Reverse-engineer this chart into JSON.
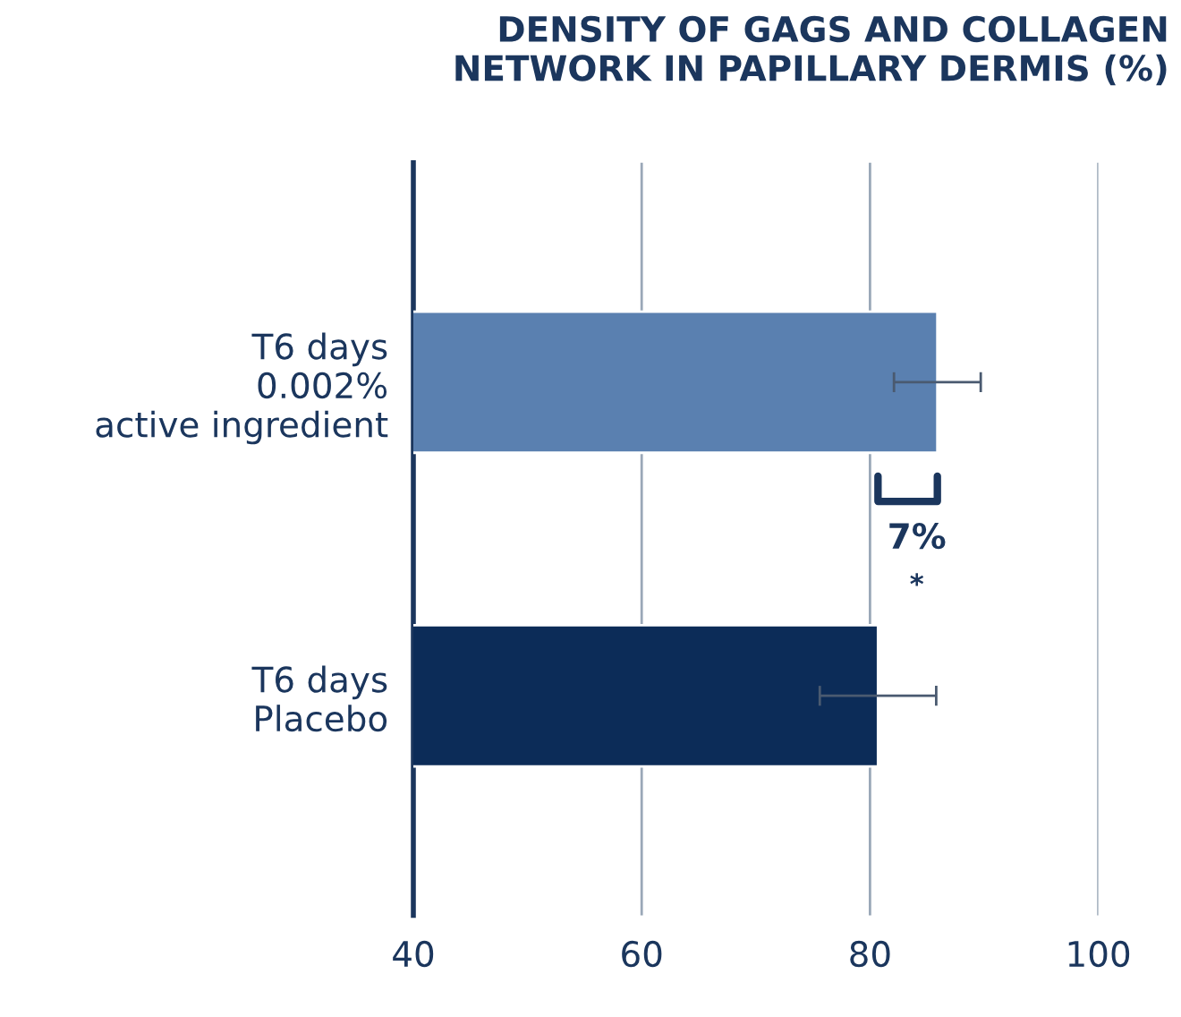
{
  "chart_data": {
    "type": "bar",
    "orientation": "horizontal",
    "title": "DENSITY OF GAGS AND COLLAGEN\nNETWORK IN PAPILLARY DERMIS (%)",
    "categories": [
      "T6 days\n0.002%\nactive ingredient",
      "T6 days\nPlacebo"
    ],
    "values": [
      85.9,
      80.7
    ],
    "colors": [
      "#5a80b0",
      "#0c2c58"
    ],
    "errors": [
      3.8,
      5.1
    ],
    "xlim": [
      40,
      100
    ],
    "xticks": [
      40,
      60,
      80,
      100
    ],
    "grid": "x",
    "annotations": [
      "7%",
      "*"
    ]
  }
}
